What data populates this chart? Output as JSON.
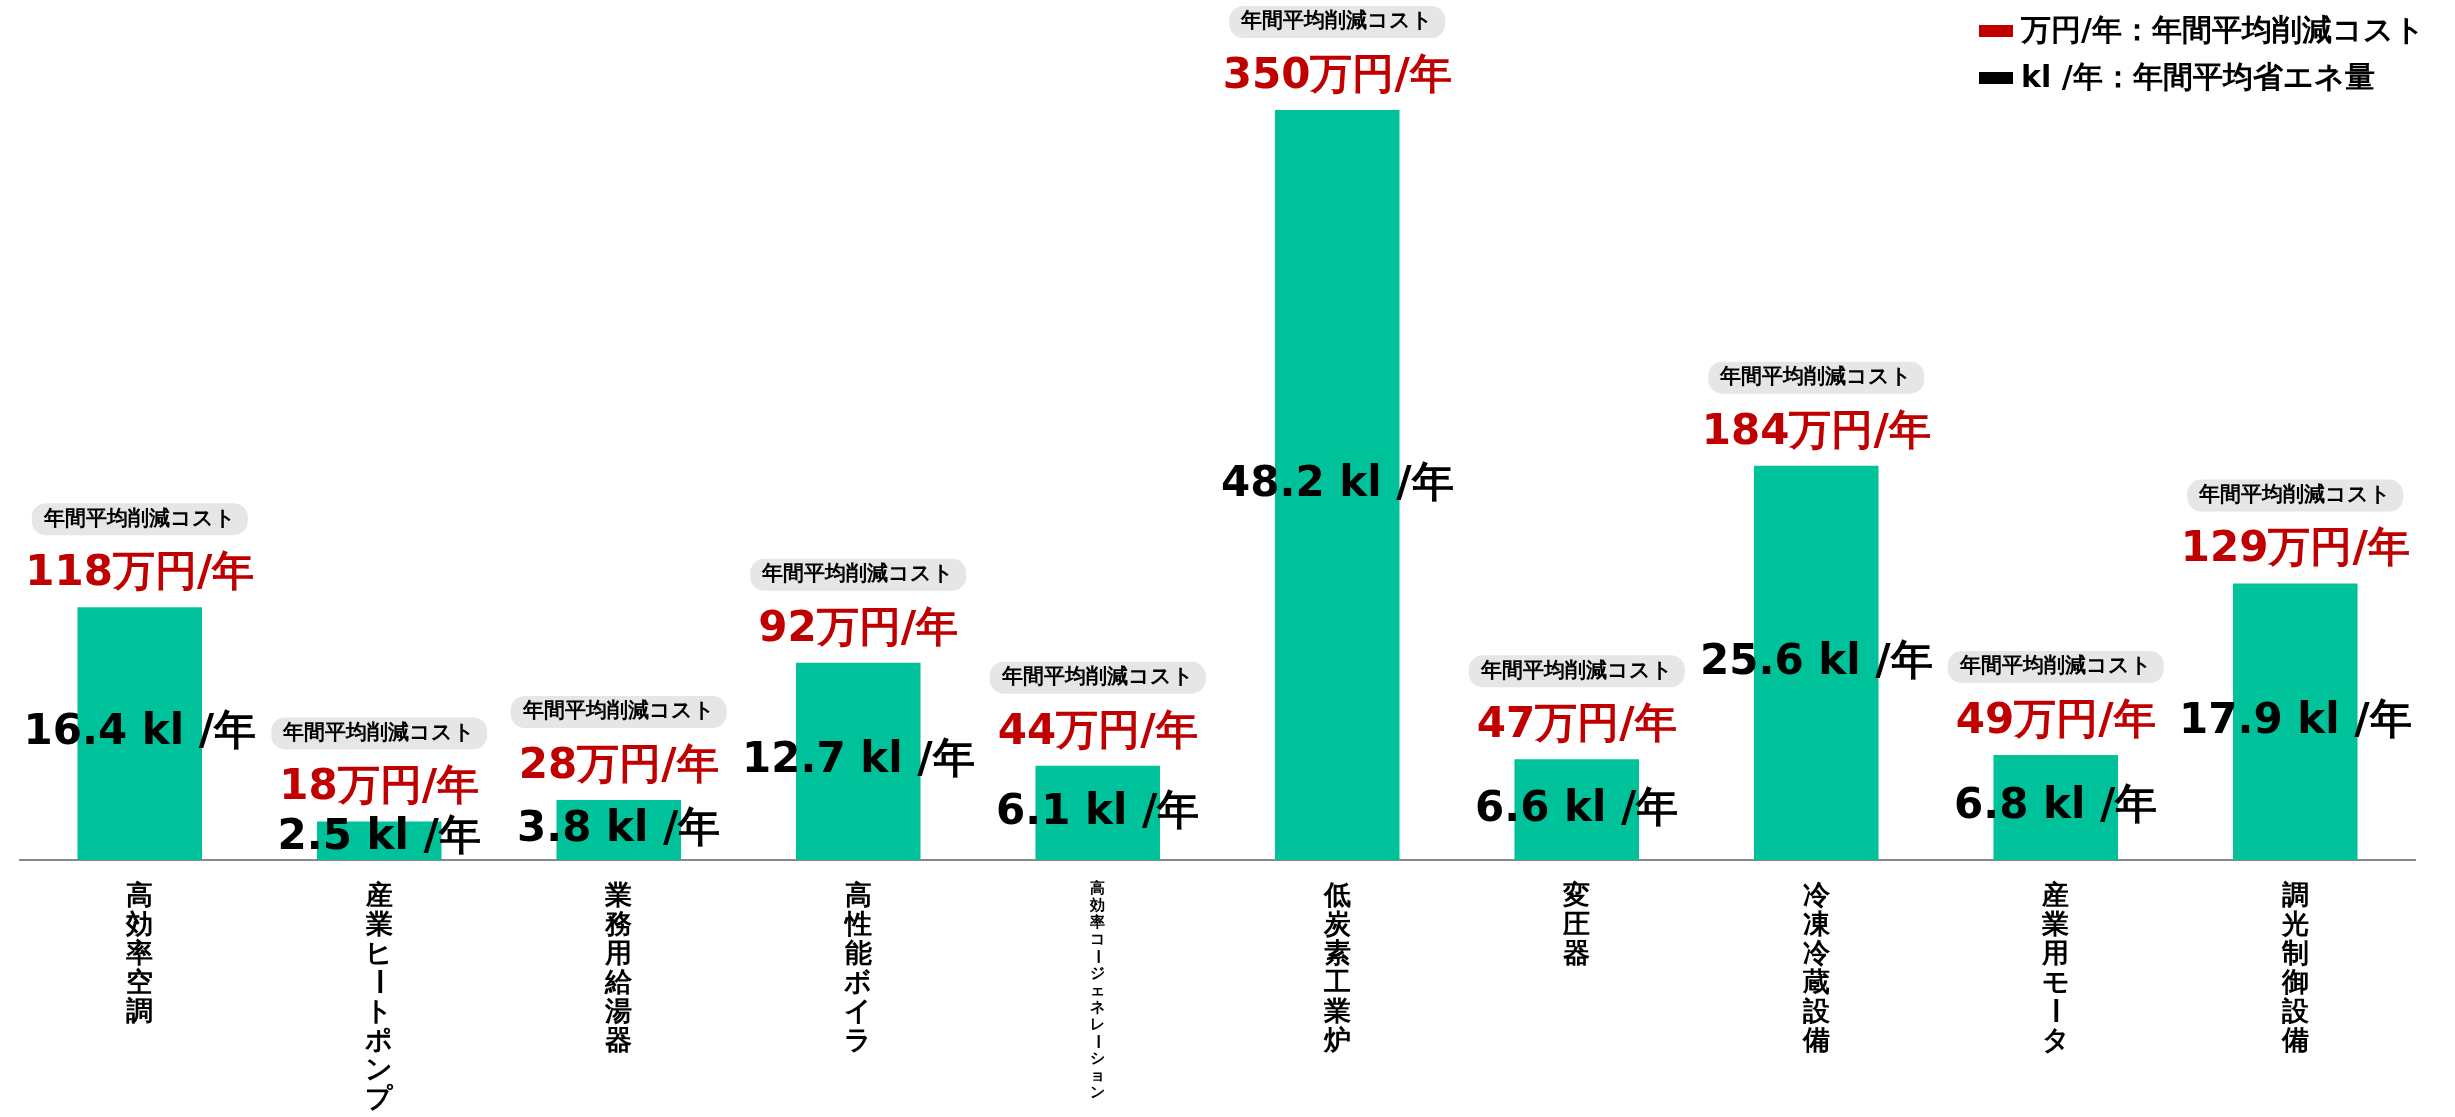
{
  "chart_data": {
    "type": "bar",
    "categories": [
      "高効率空調",
      "産業ヒートポンプ",
      "業務用給湯器",
      "高性能ボイラ",
      "高効率コージェネレーション",
      "低炭素工業炉",
      "変圧器",
      "冷凍冷蔵設備",
      "産業用モータ",
      "調光制御設備"
    ],
    "values": [
      118,
      18,
      28,
      92,
      44,
      350,
      47,
      184,
      49,
      129
    ],
    "value_labels": [
      "118万円/年",
      "18万円/年",
      "28万円/年",
      "92万円/年",
      "44万円/年",
      "350万円/年",
      "47万円/年",
      "184万円/年",
      "49万円/年",
      "129万円/年"
    ],
    "color": "#00c29a",
    "grid": false,
    "legend": false,
    "annotations": [
      "万円/年：年間平均削減コスト",
      "kl /年：年間平均省エネ量",
      "年間平均削減コスト",
      "年間平均削減コスト",
      "年間平均削減コスト",
      "年間平均削減コスト",
      "年間平均削減コスト",
      "年間平均削減コスト",
      "年間平均削減コスト",
      "年間平均削減コスト",
      "年間平均削減コスト",
      "年間平均削減コスト",
      "16.4 kl /年",
      "2.5 kl /年",
      "3.8 kl /年",
      "12.7 kl /年",
      "6.1 kl /年",
      "48.2 kl /年",
      "6.6 kl /年",
      "25.6 kl /年",
      "6.8 kl /年",
      "17.9 kl /年"
    ]
  }
}
